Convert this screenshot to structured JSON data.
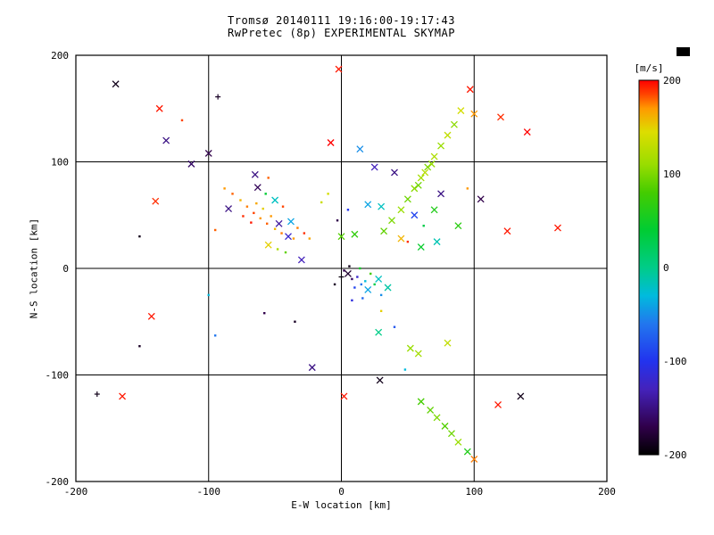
{
  "title": {
    "line1": "Tromsø 20140111 19:16:00-19:17:43",
    "line2": "RwPretec (8p) EXPERIMENTAL SKYMAP"
  },
  "chart_data": {
    "type": "scatter",
    "title": "Tromsø 20140111 19:16:00-19:17:43",
    "subtitle": "RwPretec (8p) EXPERIMENTAL SKYMAP",
    "xlabel": "E-W location [km]",
    "ylabel": "N-S location [km]",
    "xlim": [
      -200,
      200
    ],
    "ylim": [
      -200,
      200
    ],
    "xticks": [
      -200,
      -100,
      0,
      100,
      200
    ],
    "yticks": [
      -200,
      -100,
      0,
      100,
      200
    ],
    "grid": true,
    "frame_color": "#000000",
    "background_color": "#ffffff",
    "colorbar": {
      "label": "[m/s]",
      "min": -200,
      "max": 200,
      "ticks": [
        200,
        100,
        0,
        -100,
        -200
      ],
      "stops": [
        {
          "v": -200,
          "c": "#000000"
        },
        {
          "v": -170,
          "c": "#30004a"
        },
        {
          "v": -130,
          "c": "#4422bb"
        },
        {
          "v": -100,
          "c": "#2233ee"
        },
        {
          "v": -60,
          "c": "#2277ee"
        },
        {
          "v": -30,
          "c": "#00bbdd"
        },
        {
          "v": 0,
          "c": "#00cc88"
        },
        {
          "v": 40,
          "c": "#00cc33"
        },
        {
          "v": 80,
          "c": "#44cc00"
        },
        {
          "v": 110,
          "c": "#99dd00"
        },
        {
          "v": 145,
          "c": "#dddd00"
        },
        {
          "v": 170,
          "c": "#ff9900"
        },
        {
          "v": 185,
          "c": "#ff4400"
        },
        {
          "v": 200,
          "c": "#ff0000"
        }
      ]
    },
    "points_format": [
      "x_km",
      "y_km",
      "velocity_ms",
      "marker"
    ],
    "points": [
      [
        -170,
        173,
        -190,
        "x"
      ],
      [
        -137,
        150,
        195,
        "x"
      ],
      [
        -132,
        120,
        -150,
        "x"
      ],
      [
        -113,
        98,
        -160,
        "x"
      ],
      [
        -100,
        108,
        -170,
        "x"
      ],
      [
        -93,
        161,
        -185,
        "+"
      ],
      [
        -120,
        139,
        185,
        "."
      ],
      [
        -140,
        63,
        190,
        "x"
      ],
      [
        -152,
        30,
        -190,
        "."
      ],
      [
        -143,
        -45,
        195,
        "x"
      ],
      [
        -152,
        -73,
        -185,
        "."
      ],
      [
        -184,
        -118,
        -190,
        "+"
      ],
      [
        -165,
        -120,
        195,
        "x"
      ],
      [
        -100,
        -25,
        -30,
        "."
      ],
      [
        -95,
        -63,
        -60,
        "."
      ],
      [
        -58,
        -42,
        -170,
        "."
      ],
      [
        -35,
        -50,
        -185,
        "."
      ],
      [
        -22,
        -93,
        -150,
        "x"
      ],
      [
        -88,
        75,
        170,
        "."
      ],
      [
        -82,
        70,
        180,
        "."
      ],
      [
        -76,
        64,
        160,
        "."
      ],
      [
        -71,
        58,
        175,
        "."
      ],
      [
        -66,
        52,
        185,
        "."
      ],
      [
        -61,
        47,
        170,
        "."
      ],
      [
        -56,
        42,
        180,
        "."
      ],
      [
        -50,
        37,
        160,
        "."
      ],
      [
        -45,
        33,
        175,
        "."
      ],
      [
        -59,
        56,
        150,
        "."
      ],
      [
        -64,
        61,
        165,
        "."
      ],
      [
        -53,
        49,
        170,
        "."
      ],
      [
        -47,
        42,
        -140,
        "x"
      ],
      [
        -40,
        30,
        -120,
        "x"
      ],
      [
        -36,
        28,
        170,
        "."
      ],
      [
        -68,
        43,
        195,
        "."
      ],
      [
        -74,
        49,
        190,
        "."
      ],
      [
        -85,
        56,
        -150,
        "x"
      ],
      [
        -95,
        36,
        180,
        "."
      ],
      [
        -55,
        22,
        150,
        "x"
      ],
      [
        -48,
        18,
        120,
        "."
      ],
      [
        -42,
        15,
        90,
        "."
      ],
      [
        -30,
        8,
        -130,
        "x"
      ],
      [
        -63,
        76,
        -165,
        "x"
      ],
      [
        -57,
        70,
        40,
        "."
      ],
      [
        -50,
        64,
        -20,
        "x"
      ],
      [
        -44,
        58,
        185,
        "."
      ],
      [
        -38,
        44,
        -40,
        "x"
      ],
      [
        -33,
        38,
        175,
        "."
      ],
      [
        -28,
        33,
        190,
        "."
      ],
      [
        -24,
        28,
        165,
        "."
      ],
      [
        -65,
        88,
        -150,
        "x"
      ],
      [
        -55,
        85,
        180,
        "."
      ],
      [
        -15,
        62,
        135,
        "."
      ],
      [
        -10,
        70,
        140,
        "."
      ],
      [
        -3,
        45,
        -170,
        "."
      ],
      [
        5,
        55,
        -100,
        "."
      ],
      [
        0,
        30,
        85,
        "x"
      ],
      [
        10,
        32,
        70,
        "x"
      ],
      [
        -8,
        118,
        200,
        "x"
      ],
      [
        14,
        112,
        -50,
        "x"
      ],
      [
        -2,
        187,
        195,
        "x"
      ],
      [
        25,
        95,
        -130,
        "x"
      ],
      [
        40,
        90,
        -150,
        "x"
      ],
      [
        20,
        60,
        -40,
        "x"
      ],
      [
        30,
        58,
        -20,
        "x"
      ],
      [
        45,
        28,
        160,
        "x"
      ],
      [
        50,
        25,
        190,
        "."
      ],
      [
        5,
        -5,
        -180,
        "x"
      ],
      [
        8,
        -10,
        -160,
        "."
      ],
      [
        12,
        -8,
        -120,
        "."
      ],
      [
        15,
        -15,
        -60,
        "."
      ],
      [
        18,
        -12,
        -30,
        "."
      ],
      [
        10,
        -18,
        -90,
        "."
      ],
      [
        20,
        -20,
        -40,
        "x"
      ],
      [
        25,
        -15,
        30,
        "."
      ],
      [
        6,
        2,
        -190,
        "."
      ],
      [
        2,
        -2,
        -170,
        "."
      ],
      [
        14,
        0,
        50,
        "."
      ],
      [
        22,
        -5,
        80,
        "."
      ],
      [
        28,
        -10,
        -20,
        "x"
      ],
      [
        35,
        -18,
        -10,
        "x"
      ],
      [
        30,
        -25,
        -50,
        "."
      ],
      [
        16,
        -28,
        -70,
        "."
      ],
      [
        8,
        -30,
        -110,
        "."
      ],
      [
        0,
        -8,
        -195,
        "+"
      ],
      [
        -5,
        -15,
        -185,
        "."
      ],
      [
        32,
        35,
        90,
        "x"
      ],
      [
        38,
        45,
        100,
        "x"
      ],
      [
        45,
        55,
        110,
        "x"
      ],
      [
        50,
        65,
        95,
        "x"
      ],
      [
        55,
        75,
        105,
        "x"
      ],
      [
        60,
        85,
        115,
        "x"
      ],
      [
        65,
        95,
        100,
        "x"
      ],
      [
        70,
        105,
        120,
        "x"
      ],
      [
        75,
        115,
        110,
        "x"
      ],
      [
        80,
        125,
        130,
        "x"
      ],
      [
        85,
        135,
        105,
        "x"
      ],
      [
        90,
        148,
        140,
        "x"
      ],
      [
        100,
        145,
        170,
        "x"
      ],
      [
        58,
        78,
        95,
        "x"
      ],
      [
        68,
        98,
        108,
        "x"
      ],
      [
        63,
        90,
        125,
        "x"
      ],
      [
        55,
        50,
        -90,
        "x"
      ],
      [
        62,
        40,
        30,
        "."
      ],
      [
        70,
        55,
        60,
        "x"
      ],
      [
        75,
        70,
        -150,
        "x"
      ],
      [
        95,
        75,
        170,
        "."
      ],
      [
        105,
        65,
        -170,
        "x"
      ],
      [
        125,
        35,
        195,
        "x"
      ],
      [
        60,
        20,
        45,
        "x"
      ],
      [
        72,
        25,
        -15,
        "x"
      ],
      [
        88,
        40,
        65,
        "x"
      ],
      [
        163,
        38,
        195,
        "x"
      ],
      [
        140,
        128,
        200,
        "x"
      ],
      [
        120,
        142,
        190,
        "x"
      ],
      [
        97,
        168,
        195,
        "x"
      ],
      [
        30,
        -40,
        150,
        "."
      ],
      [
        40,
        -55,
        -80,
        "."
      ],
      [
        28,
        -60,
        0,
        "x"
      ],
      [
        52,
        -75,
        110,
        "x"
      ],
      [
        58,
        -80,
        115,
        "x"
      ],
      [
        80,
        -70,
        130,
        "x"
      ],
      [
        48,
        -95,
        -30,
        "."
      ],
      [
        2,
        -120,
        195,
        "x"
      ],
      [
        29,
        -105,
        -190,
        "x"
      ],
      [
        135,
        -120,
        -190,
        "x"
      ],
      [
        118,
        -128,
        195,
        "x"
      ],
      [
        60,
        -125,
        80,
        "x"
      ],
      [
        67,
        -133,
        90,
        "x"
      ],
      [
        72,
        -140,
        100,
        "x"
      ],
      [
        78,
        -148,
        85,
        "x"
      ],
      [
        83,
        -155,
        95,
        "x"
      ],
      [
        88,
        -163,
        110,
        "x"
      ],
      [
        95,
        -172,
        60,
        "x"
      ],
      [
        100,
        -179,
        175,
        "x"
      ]
    ]
  }
}
